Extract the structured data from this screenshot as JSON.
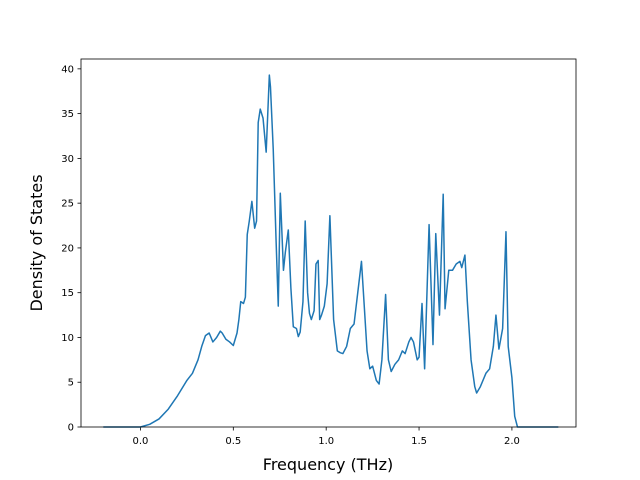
{
  "chart_data": {
    "type": "line",
    "x_label": "Frequency (THz)",
    "y_label": "Density of States",
    "x": [
      -0.2,
      -0.1,
      0,
      0.05,
      0.1,
      0.15,
      0.2,
      0.25,
      0.28,
      0.31,
      0.33,
      0.35,
      0.37,
      0.39,
      0.41,
      0.43,
      0.44,
      0.46,
      0.48,
      0.5,
      0.52,
      0.53,
      0.54,
      0.555,
      0.565,
      0.575,
      0.586,
      0.6,
      0.615,
      0.625,
      0.634,
      0.645,
      0.66,
      0.677,
      0.694,
      0.7,
      0.715,
      0.73,
      0.742,
      0.753,
      0.77,
      0.78,
      0.796,
      0.81,
      0.823,
      0.84,
      0.85,
      0.86,
      0.875,
      0.887,
      0.9,
      0.91,
      0.92,
      0.935,
      0.945,
      0.957,
      0.965,
      0.975,
      0.99,
      1.005,
      1.02,
      1.04,
      1.06,
      1.075,
      1.09,
      1.11,
      1.13,
      1.15,
      1.17,
      1.19,
      1.205,
      1.22,
      1.235,
      1.25,
      1.27,
      1.285,
      1.3,
      1.32,
      1.335,
      1.35,
      1.37,
      1.39,
      1.41,
      1.425,
      1.445,
      1.457,
      1.47,
      1.49,
      1.5,
      1.516,
      1.53,
      1.554,
      1.575,
      1.59,
      1.61,
      1.63,
      1.64,
      1.66,
      1.68,
      1.7,
      1.72,
      1.73,
      1.747,
      1.76,
      1.78,
      1.8,
      1.81,
      1.83,
      1.86,
      1.88,
      1.9,
      1.914,
      1.93,
      1.95,
      1.968,
      1.98,
      2.0,
      2.015,
      2.03,
      2.06,
      2.15,
      2.25
    ],
    "series": [
      {
        "color": "#1f77b4",
        "values": [
          0,
          0,
          0,
          0.3,
          0.9,
          2,
          3.5,
          5.2,
          6,
          7.5,
          9,
          10.2,
          10.5,
          9.5,
          10,
          10.7,
          10.5,
          9.8,
          9.5,
          9.1,
          10.5,
          12,
          14,
          13.8,
          14.5,
          21.5,
          23,
          25.2,
          22.2,
          23,
          34,
          35.5,
          34.5,
          30.7,
          39.3,
          38,
          31,
          21,
          13.5,
          26.1,
          17.5,
          19.5,
          22,
          15.5,
          11.2,
          11,
          10.1,
          10.6,
          14,
          23,
          15,
          12.7,
          12,
          13,
          18.2,
          18.6,
          12,
          12.5,
          13.5,
          16,
          23.6,
          12,
          8.5,
          8.3,
          8.2,
          9,
          11,
          11.5,
          15,
          18.5,
          13.5,
          8.5,
          6.5,
          6.8,
          5.2,
          4.8,
          7.5,
          14.8,
          7.5,
          6.2,
          7,
          7.5,
          8.5,
          8.2,
          9.5,
          10,
          9.5,
          7.5,
          7.8,
          13.8,
          6.5,
          22.6,
          9.2,
          21.6,
          12.5,
          26,
          13.2,
          17.5,
          17.5,
          18.2,
          18.5,
          17.8,
          19.2,
          14,
          7.5,
          4.5,
          3.8,
          4.5,
          6,
          6.5,
          9,
          12.5,
          8.7,
          11,
          21.8,
          9,
          5.5,
          1.2,
          0,
          0,
          0,
          0
        ]
      }
    ],
    "xlim": [
      -0.32,
      2.345
    ],
    "ylim": [
      0,
      41.1
    ],
    "xticks": [
      {
        "value": 0,
        "label": "0.0"
      },
      {
        "value": 0.5,
        "label": "0.5"
      },
      {
        "value": 1,
        "label": "1.0"
      },
      {
        "value": 1.5,
        "label": "1.5"
      },
      {
        "value": 2,
        "label": "2.0"
      }
    ],
    "yticks": [
      0,
      5,
      10,
      15,
      20,
      25,
      30,
      35,
      40
    ],
    "grid": false
  }
}
